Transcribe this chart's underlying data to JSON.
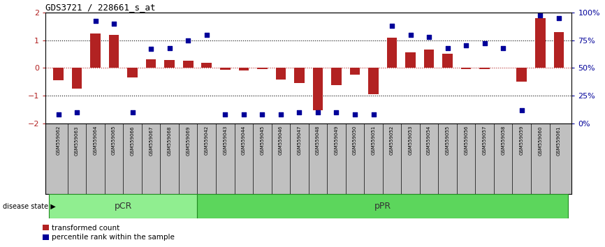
{
  "title": "GDS3721 / 228661_s_at",
  "samples": [
    "GSM559062",
    "GSM559063",
    "GSM559064",
    "GSM559065",
    "GSM559066",
    "GSM559067",
    "GSM559068",
    "GSM559069",
    "GSM559042",
    "GSM559043",
    "GSM559044",
    "GSM559045",
    "GSM559046",
    "GSM559047",
    "GSM559048",
    "GSM559049",
    "GSM559050",
    "GSM559051",
    "GSM559052",
    "GSM559053",
    "GSM559054",
    "GSM559055",
    "GSM559056",
    "GSM559057",
    "GSM559058",
    "GSM559059",
    "GSM559060",
    "GSM559061"
  ],
  "transformed_count": [
    -0.45,
    -0.75,
    1.25,
    1.2,
    -0.35,
    0.3,
    0.28,
    0.25,
    0.18,
    -0.07,
    -0.08,
    -0.05,
    -0.42,
    -0.55,
    -1.52,
    -0.62,
    -0.25,
    -0.95,
    1.08,
    0.55,
    0.65,
    0.5,
    -0.05,
    -0.05,
    0.0,
    -0.5,
    1.8,
    1.3
  ],
  "percentile_rank": [
    8,
    10,
    92,
    90,
    10,
    67,
    68,
    75,
    80,
    8,
    8,
    8,
    8,
    10,
    10,
    10,
    8,
    8,
    88,
    80,
    78,
    68,
    70,
    72,
    68,
    12,
    97,
    95
  ],
  "pCR_count": 8,
  "bar_color": "#B22222",
  "dot_color": "#000099",
  "pCR_color": "#90EE90",
  "pPR_color": "#5CD65C",
  "box_bg_color": "#C0C0C0",
  "ylim_left": [
    -2.0,
    2.0
  ],
  "ylim_right": [
    0,
    100
  ],
  "yticks_left": [
    -2,
    -1,
    0,
    1,
    2
  ],
  "yticks_right": [
    0,
    25,
    50,
    75,
    100
  ],
  "ytick_labels_right": [
    "0%",
    "25%",
    "50%",
    "75%",
    "100%"
  ],
  "label_bar": "transformed count",
  "label_dot": "percentile rank within the sample",
  "disease_state_label": "disease state",
  "pCR_label": "pCR",
  "pPR_label": "pPR"
}
